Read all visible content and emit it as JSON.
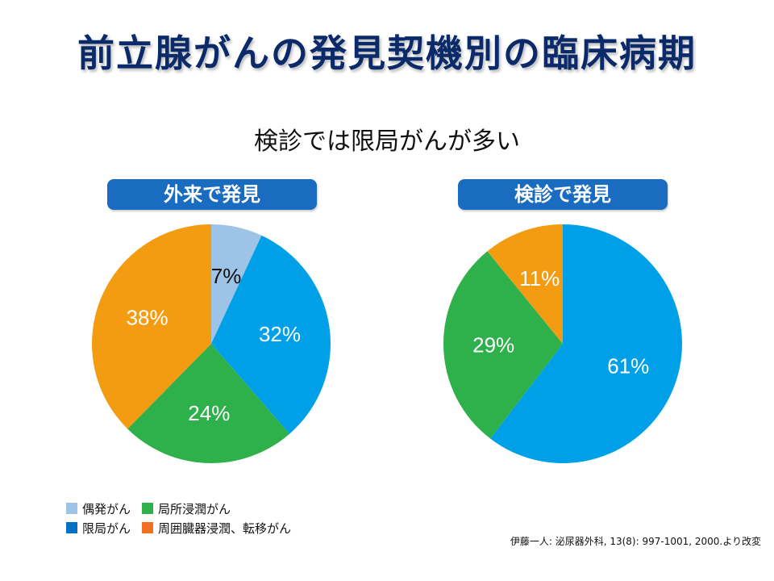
{
  "header": {
    "title": "前立腺がんの発見契機別の臨床病期",
    "subtitle": "検診では限局がんが多い"
  },
  "chart_data": [
    {
      "type": "pie",
      "title": "外来で発見",
      "slices": [
        {
          "label": "偶発がん",
          "value": 7,
          "display": "7%",
          "color": "#9dc3e6"
        },
        {
          "label": "限局がん",
          "value": 32,
          "display": "32%",
          "color": "#00a0e9"
        },
        {
          "label": "局所浸潤がん",
          "value": 24,
          "display": "24%",
          "color": "#2eb04b"
        },
        {
          "label": "周囲臓器浸潤、転移がん",
          "value": 38,
          "display": "38%",
          "color": "#f39c12"
        }
      ]
    },
    {
      "type": "pie",
      "title": "検診で発見",
      "slices": [
        {
          "label": "限局がん",
          "value": 61,
          "display": "61%",
          "color": "#00a0e9"
        },
        {
          "label": "局所浸潤がん",
          "value": 29,
          "display": "29%",
          "color": "#2eb04b"
        },
        {
          "label": "周囲臓器浸潤、転移がん",
          "value": 11,
          "display": "11%",
          "color": "#f39c12"
        }
      ]
    }
  ],
  "legend": {
    "items": [
      {
        "label": "偶発がん",
        "color": "#9dc3e6"
      },
      {
        "label": "局所浸潤がん",
        "color": "#2eb04b"
      },
      {
        "label": "限局がん",
        "color": "#0072c6"
      },
      {
        "label": "周囲臓器浸潤、転移がん",
        "color": "#f36f21"
      }
    ]
  },
  "source": "伊藤一人: 泌尿器外科, 13(8): 997-1001, 2000.より改変"
}
